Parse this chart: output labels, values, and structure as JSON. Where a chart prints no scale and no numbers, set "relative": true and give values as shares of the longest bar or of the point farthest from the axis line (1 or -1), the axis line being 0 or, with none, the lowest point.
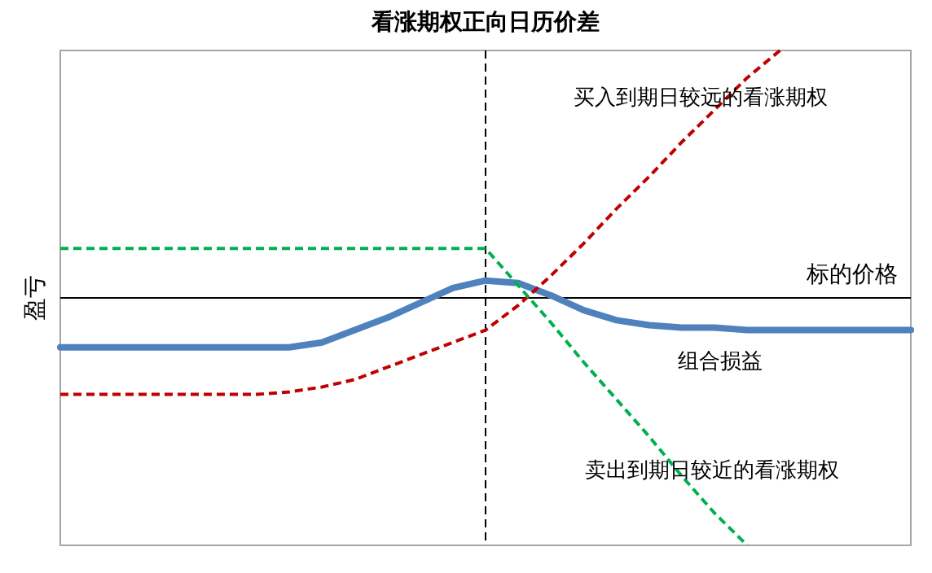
{
  "chart_data": {
    "type": "line",
    "title": "看涨期权正向日历价差",
    "ylabel": "盈亏",
    "relative": true,
    "categories": [
      null,
      null,
      null,
      null,
      null,
      null,
      null,
      null,
      null,
      null,
      null,
      null,
      null,
      null,
      null,
      null,
      null,
      null,
      null,
      null,
      null,
      null,
      null,
      null,
      null,
      null,
      null
    ],
    "series": [
      {
        "name": "组合损益",
        "color": "#4f81bd",
        "line_style": "solid",
        "values": [
          -0.2,
          -0.2,
          -0.2,
          -0.2,
          -0.2,
          -0.2,
          -0.2,
          -0.2,
          -0.18,
          -0.13,
          -0.08,
          -0.02,
          0.04,
          0.07,
          0.06,
          0.01,
          -0.05,
          -0.09,
          -0.11,
          -0.12,
          -0.12,
          -0.13,
          -0.13,
          -0.13,
          -0.13,
          -0.13,
          -0.13
        ]
      },
      {
        "name": "买入到期日较远的看涨期权",
        "color": "#c00000",
        "line_style": "dashed",
        "values": [
          -0.39,
          -0.39,
          -0.39,
          -0.39,
          -0.39,
          -0.39,
          -0.39,
          -0.38,
          -0.36,
          -0.33,
          -0.28,
          -0.23,
          -0.18,
          -0.13,
          -0.03,
          0.09,
          0.22,
          0.36,
          0.49,
          0.63,
          0.76,
          0.89,
          1.0,
          null,
          null,
          null,
          null
        ]
      },
      {
        "name": "卖出到期日较近的看涨期权",
        "color": "#00b050",
        "line_style": "dashed",
        "values": [
          0.2,
          0.2,
          0.2,
          0.2,
          0.2,
          0.2,
          0.2,
          0.2,
          0.2,
          0.2,
          0.2,
          0.2,
          0.2,
          0.2,
          0.05,
          -0.1,
          -0.26,
          -0.41,
          -0.56,
          -0.72,
          -0.87,
          -1.0,
          null,
          null,
          null,
          null,
          null
        ]
      }
    ],
    "ref_lines": [
      {
        "axis": "y",
        "value": 0,
        "label": "标的价格",
        "color": "#000000",
        "line_style": "solid"
      }
    ]
  }
}
